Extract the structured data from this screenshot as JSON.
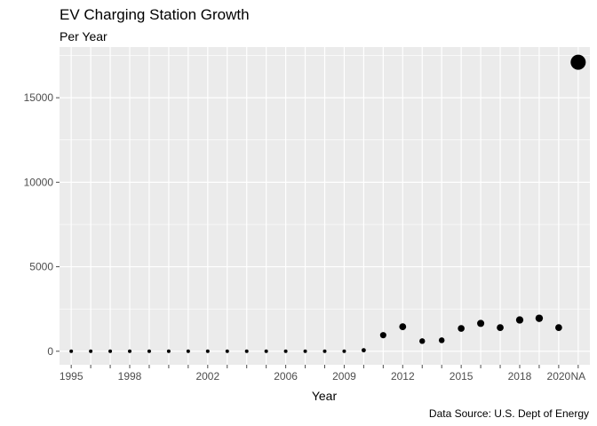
{
  "chart_data": {
    "type": "scatter",
    "title": "EV Charging Station Growth",
    "subtitle": "Per Year",
    "xlabel": "Year",
    "ylabel": "",
    "caption": "Data Source: U.S. Dept of Energy",
    "categories": [
      "1995",
      "1996",
      "1997",
      "1998",
      "1999",
      "2000",
      "2001",
      "2002",
      "2003",
      "2004",
      "2005",
      "2006",
      "2007",
      "2008",
      "2009",
      "2010",
      "2011",
      "2012",
      "2013",
      "2014",
      "2015",
      "2016",
      "2017",
      "2018",
      "2019",
      "2020",
      "NA"
    ],
    "x_tick_labels": [
      "1995",
      "1998",
      "2002",
      "2006",
      "2009",
      "2012",
      "2015",
      "2018",
      "2020",
      "NA"
    ],
    "values": [
      0,
      0,
      0,
      0,
      0,
      0,
      0,
      0,
      0,
      0,
      0,
      0,
      0,
      0,
      0,
      60,
      950,
      1450,
      600,
      650,
      1350,
      1650,
      1400,
      1850,
      1950,
      1400,
      17100
    ],
    "ylim": [
      -800,
      18000
    ],
    "y_ticks": [
      0,
      5000,
      10000,
      15000
    ],
    "y_tick_labels": [
      "0",
      "5000",
      "10000",
      "15000"
    ],
    "colors": {
      "panel": "#ebebeb",
      "grid": "#ffffff",
      "point": "#000000",
      "tick": "#4d4d4d"
    },
    "grid": true,
    "point_size_scaled_by_value": true,
    "legend": "none"
  }
}
